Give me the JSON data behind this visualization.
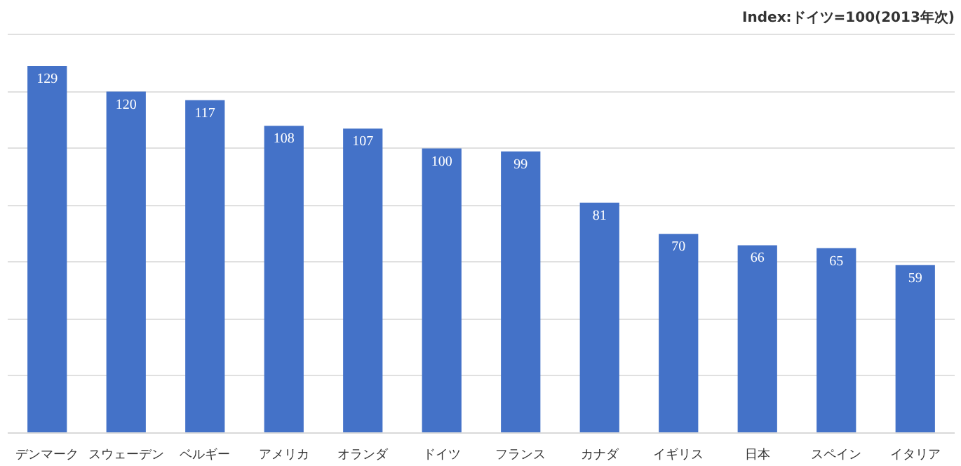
{
  "chart_data": {
    "type": "bar",
    "title": "Index:ドイツ=100(2013年次)",
    "categories": [
      "デンマーク",
      "スウェーデン",
      "ベルギー",
      "アメリカ",
      "オランダ",
      "ドイツ",
      "フランス",
      "カナダ",
      "イギリス",
      "日本",
      "スペイン",
      "イタリア"
    ],
    "values": [
      129,
      120,
      117,
      108,
      107,
      100,
      99,
      81,
      70,
      66,
      65,
      59
    ],
    "color": "#4472c8",
    "data_labels": true,
    "grid": "y",
    "tick_labels": "x"
  }
}
